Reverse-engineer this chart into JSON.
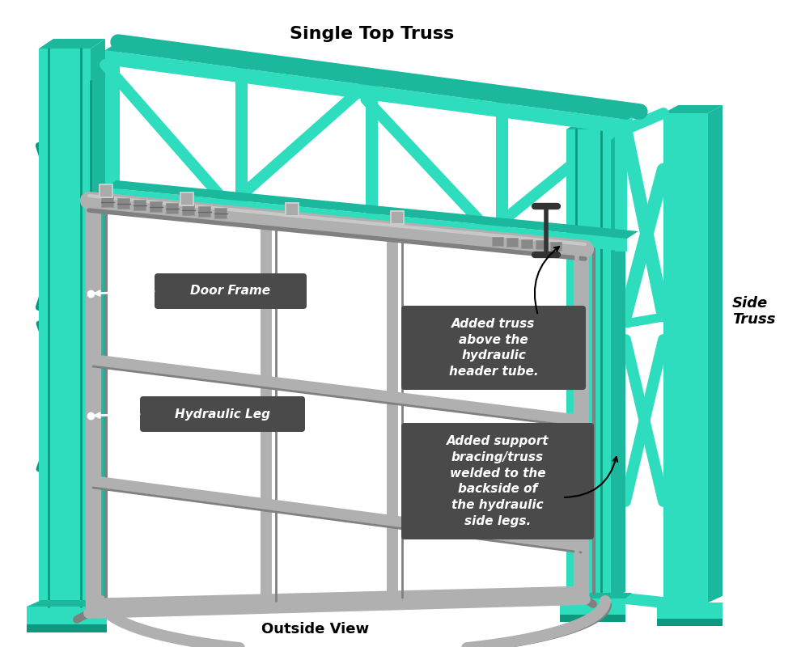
{
  "bg_color": "#ffffff",
  "teal": "#2EDCBE",
  "teal_mid": "#1BB89E",
  "teal_dark": "#0D9980",
  "teal_side": "#22C4A8",
  "gray_frame": "#B0B0B0",
  "gray_dark": "#808080",
  "gray_light": "#C8C8C8",
  "gray_shadow": "#909090",
  "label_bg": "#4A4A4A",
  "label_text": "#ffffff",
  "black": "#000000",
  "white": "#ffffff",
  "title": "Single Top Truss",
  "subtitle": "Outside View",
  "side_truss_label": "Side\nTruss",
  "door_frame_label": "Door Frame",
  "hydraulic_leg_label": "Hydraulic Leg",
  "added_truss_label": "Added truss\nabove the\nhydraulic\nheader tube.",
  "added_support_label": "Added support\nbracing/truss\nwelded to the\nbackside of\nthe hydraulic\nside legs."
}
